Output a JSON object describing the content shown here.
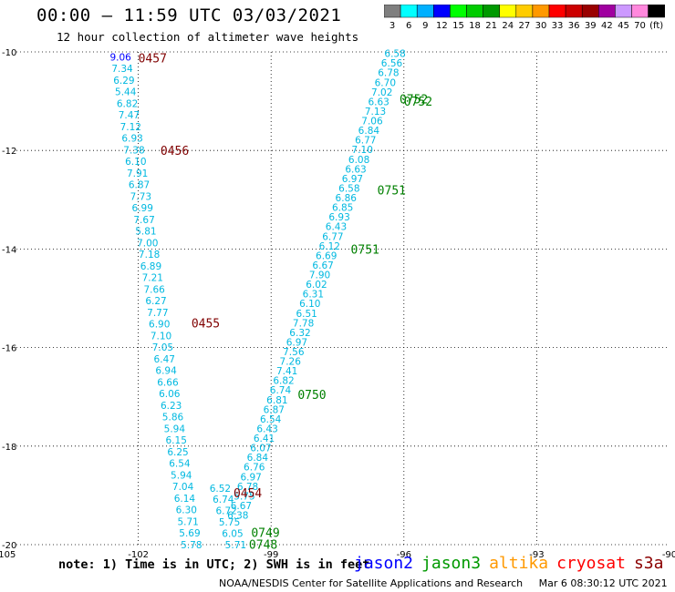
{
  "header": {
    "title": "00:00 – 11:59 UTC 03/03/2021",
    "subtitle": "12 hour collection of altimeter wave heights"
  },
  "colorbar": {
    "labels": [
      "3",
      "6",
      "9",
      "12",
      "15",
      "18",
      "21",
      "24",
      "27",
      "30",
      "33",
      "36",
      "39",
      "42",
      "45",
      "70",
      "(ft)"
    ],
    "colors": [
      "#7f7f7f",
      "#00ffff",
      "#00b0ff",
      "#0000ff",
      "#00ff00",
      "#00cc00",
      "#009900",
      "#ffff00",
      "#ffcc00",
      "#ff9900",
      "#ff0000",
      "#cc0000",
      "#990000",
      "#a000a0",
      "#cc99ff",
      "#ff88dd",
      "#000000"
    ]
  },
  "map": {
    "lon_labels": [
      "-105",
      "-102",
      "-99",
      "-96",
      "-93",
      "-90"
    ],
    "lat_labels": [
      "-10",
      "-12",
      "-14",
      "-16",
      "-18",
      "-20"
    ],
    "lon_range": [
      -105,
      -90
    ],
    "lat_range": [
      -10,
      -20
    ],
    "grid_style": "dotted",
    "time_labels": [
      {
        "text": "0457",
        "lon": -102.0,
        "lat": -10.12,
        "color": "#800000"
      },
      {
        "text": "0456",
        "lon": -101.5,
        "lat": -12.0,
        "color": "#800000"
      },
      {
        "text": "0455",
        "lon": -100.8,
        "lat": -15.5,
        "color": "#800000"
      },
      {
        "text": "0454",
        "lon": -99.85,
        "lat": -18.95,
        "color": "#800000"
      },
      {
        "text": "0752",
        "lon": -96.1,
        "lat": -10.95,
        "color": "#008000"
      },
      {
        "text": "0752",
        "lon": -96.0,
        "lat": -11.0,
        "color": "#008000"
      },
      {
        "text": "0751",
        "lon": -96.6,
        "lat": -12.8,
        "color": "#008000"
      },
      {
        "text": "0751",
        "lon": -97.2,
        "lat": -14.0,
        "color": "#008000"
      },
      {
        "text": "0750",
        "lon": -98.4,
        "lat": -16.95,
        "color": "#008000"
      },
      {
        "text": "0749",
        "lon": -99.45,
        "lat": -19.75,
        "color": "#008000"
      },
      {
        "text": "0748",
        "lon": -99.5,
        "lat": -19.99,
        "color": "#008000"
      }
    ],
    "track_west": {
      "satellite": "cryosat",
      "color": "#00b8e0",
      "first_color": "#0000ff",
      "start": {
        "lon": -102.4,
        "lat": -10.1
      },
      "end": {
        "lon": -100.8,
        "lat": -20.0
      },
      "values": [
        "9.06",
        "7.34",
        "6.29",
        "5.44",
        "6.82",
        "7.47",
        "7.12",
        "6.93",
        "7.38",
        "6.10",
        "7.91",
        "6.87",
        "7.73",
        "6.99",
        "7.67",
        "5.81",
        "7.00",
        "7.18",
        "6.89",
        "7.21",
        "7.66",
        "6.27",
        "7.77",
        "6.90",
        "7.10",
        "7.05",
        "6.47",
        "6.94",
        "6.66",
        "6.06",
        "6.23",
        "5.86",
        "5.94",
        "6.15",
        "6.25",
        "6.54",
        "5.94",
        "7.04",
        "6.14",
        "6.30",
        "5.71",
        "5.69",
        "5.78"
      ]
    },
    "track_west2": {
      "color": "#00b8e0",
      "start": {
        "lon": -100.15,
        "lat": -18.85
      },
      "end": {
        "lon": -99.8,
        "lat": -20.0
      },
      "values": [
        "6.52",
        "6.74",
        "6.72",
        "5.75",
        "6.05",
        "5.71"
      ]
    },
    "track_east": {
      "satellite": "jason3",
      "color": "#00b8e0",
      "start": {
        "lon": -96.2,
        "lat": -10.03
      },
      "end": {
        "lon": -99.75,
        "lat": -19.4
      },
      "values": [
        "6.58",
        "6.56",
        "6.78",
        "6.70",
        "7.02",
        "6.63",
        "7.13",
        "7.06",
        "6.84",
        "6.77",
        "7.10",
        "6.08",
        "6.63",
        "6.97",
        "6.58",
        "6.86",
        "6.85",
        "6.93",
        "6.43",
        "6.77",
        "6.12",
        "6.69",
        "6.67",
        "7.90",
        "6.02",
        "6.31",
        "6.10",
        "6.51",
        "7.78",
        "6.32",
        "6.97",
        "7.56",
        "7.26",
        "7.41",
        "6.82",
        "6.74",
        "6.81",
        "6.87",
        "6.54",
        "6.43",
        "6.41",
        "6.07",
        "6.84",
        "6.76",
        "6.97",
        "6.78",
        "5.75",
        "6.67",
        "6.38"
      ]
    }
  },
  "legend": {
    "note": "note: 1) Time is in UTC; 2) SWH is in feet",
    "satellites": [
      {
        "name": "jason2",
        "color": "#0000ff"
      },
      {
        "name": "jason3",
        "color": "#009900"
      },
      {
        "name": "altika",
        "color": "#ff9900"
      },
      {
        "name": "cryosat",
        "color": "#ff0000"
      },
      {
        "name": "s3a",
        "color": "#8b0000"
      }
    ]
  },
  "credit": {
    "source": "NOAA/NESDIS Center for Satellite Applications and Research",
    "date": "Mar  6 08:30:12 UTC 2021"
  }
}
